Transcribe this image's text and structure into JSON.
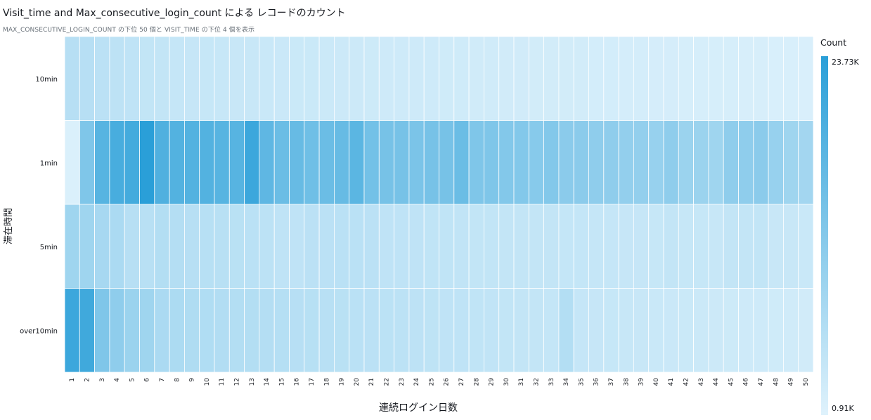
{
  "chart_data": {
    "type": "heatmap",
    "title": "Visit_time and Max_consecutive_login_count による レコードのカウント",
    "subtitle": "MAX_CONSECUTIVE_LOGIN_COUNT の下位 50 個と VISIT_TIME の下位 4 個を表示",
    "xlabel": "連続ログイン日数",
    "ylabel": "滞在時間",
    "x_categories": [
      "1",
      "2",
      "3",
      "4",
      "5",
      "6",
      "7",
      "8",
      "9",
      "10",
      "11",
      "12",
      "13",
      "14",
      "15",
      "16",
      "17",
      "18",
      "19",
      "20",
      "21",
      "22",
      "23",
      "24",
      "25",
      "26",
      "27",
      "28",
      "29",
      "30",
      "31",
      "32",
      "33",
      "34",
      "35",
      "36",
      "37",
      "38",
      "39",
      "40",
      "41",
      "42",
      "43",
      "44",
      "45",
      "46",
      "47",
      "48",
      "49",
      "50"
    ],
    "y_categories": [
      "10min",
      "1min",
      "5min",
      "over10min"
    ],
    "values": [
      [
        6000,
        6000,
        5500,
        5200,
        5000,
        4600,
        4500,
        4200,
        4100,
        4000,
        3900,
        3800,
        3800,
        3700,
        3600,
        3500,
        3500,
        3400,
        3300,
        3300,
        3200,
        3100,
        3100,
        3000,
        3000,
        2900,
        2900,
        2800,
        2800,
        2700,
        2700,
        2600,
        2600,
        2500,
        2500,
        2400,
        2400,
        2300,
        2300,
        2200,
        2200,
        2100,
        2100,
        2000,
        2000,
        1900,
        1900,
        1800,
        1800,
        1700
      ],
      [
        1500,
        13000,
        18000,
        20000,
        20500,
        23730,
        19000,
        18500,
        18500,
        18500,
        18000,
        18000,
        21500,
        17000,
        15500,
        16000,
        15000,
        15500,
        16000,
        17500,
        14500,
        14000,
        14000,
        13500,
        14000,
        14000,
        15500,
        13000,
        13000,
        12500,
        12500,
        12000,
        12500,
        11500,
        11500,
        11000,
        11000,
        10500,
        10500,
        10000,
        11000,
        9500,
        9500,
        9000,
        11000,
        11000,
        11500,
        10000,
        9000,
        8500
      ],
      [
        9000,
        9000,
        8000,
        7500,
        6000,
        5800,
        6500,
        6300,
        6000,
        5900,
        5800,
        5700,
        5600,
        5300,
        5000,
        5000,
        5500,
        5500,
        5600,
        5600,
        5500,
        5000,
        5000,
        5000,
        4800,
        4800,
        4700,
        4600,
        4600,
        4500,
        4500,
        4400,
        4400,
        4300,
        4300,
        4200,
        4200,
        4100,
        4100,
        4000,
        4500,
        4000,
        4000,
        3900,
        4500,
        4500,
        4600,
        3800,
        3800,
        3700
      ],
      [
        21500,
        21000,
        13000,
        11000,
        9500,
        9000,
        7500,
        7300,
        7000,
        6800,
        6600,
        6500,
        6400,
        6300,
        6200,
        6000,
        5900,
        5800,
        5700,
        5600,
        5500,
        5400,
        5300,
        5200,
        5100,
        5000,
        4900,
        4800,
        4700,
        4600,
        4500,
        4400,
        4300,
        6500,
        4200,
        4100,
        4000,
        3900,
        3800,
        3700,
        3600,
        3500,
        3400,
        3300,
        3200,
        3100,
        3000,
        2900,
        2800,
        2700
      ]
    ],
    "color_scale": {
      "title": "Count",
      "min": 910,
      "max": 23730,
      "min_label": "0.91K",
      "max_label": "23.73K",
      "min_color": "#dff2fc",
      "max_color": "#2a9fd8"
    },
    "grid": false,
    "legend_placement": "right"
  }
}
